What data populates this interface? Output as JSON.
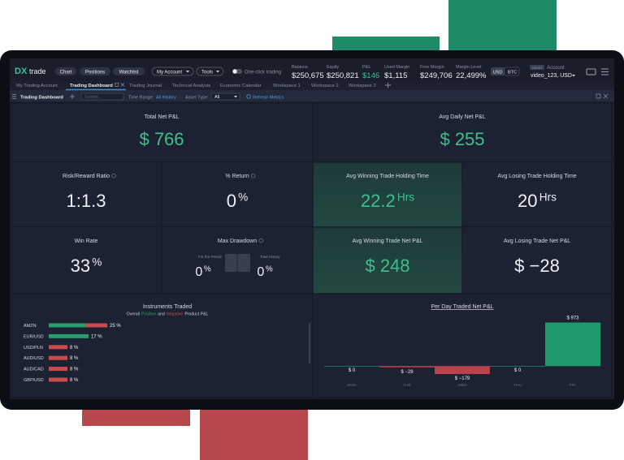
{
  "header": {
    "logo": {
      "mark": "DX",
      "text": "trade"
    },
    "buttons": [
      "Chart",
      "Positions",
      "Watchlist"
    ],
    "menus": [
      "My Account",
      "Tools"
    ],
    "toggle": "One-click trading",
    "metrics": [
      {
        "label": "Balance",
        "value": "$250,675"
      },
      {
        "label": "Equity",
        "value": "$250,821"
      },
      {
        "label": "P&L",
        "value": "$146",
        "positive": true
      },
      {
        "label": "Used Margin",
        "value": "$1,115"
      },
      {
        "label": "Free Margin",
        "value": "$249,706"
      },
      {
        "label": "Margin Level",
        "value": "22,499%"
      }
    ],
    "currencies": [
      "USD",
      "BTC"
    ],
    "account": {
      "badge": "DEMO",
      "label": "Account",
      "value": "video_123, USD"
    }
  },
  "tabs": {
    "items": [
      "My Trading Account",
      "Trading Dashboard",
      "Trading Journal",
      "Technical Analysis",
      "Economic Calendar",
      "Workspace 1",
      "Workspace 2",
      "Workspace 3"
    ],
    "active": 1
  },
  "toolbar": {
    "title": "Trading Dashboard",
    "symbol_placeholder": "Symbol...",
    "time_range_label": "Time Range:",
    "time_range": "All History",
    "asset_type_label": "Asset Type:",
    "asset_type": "All",
    "refresh": "Refresh Metrics"
  },
  "cards": [
    {
      "label": "Total Net P&L",
      "value": "$ 766",
      "positive": true
    },
    {
      "label": "Avg Daily Net P&L",
      "value": "$ 255",
      "positive": true
    },
    {
      "label": "Risk/Reward Ratio",
      "value": "1:1.3",
      "info": true
    },
    {
      "label": "% Return",
      "value": "0",
      "unit": "%",
      "info": true
    },
    {
      "label": "Avg Winning Trade Holding Time",
      "value": "22.2",
      "unit": "Hrs",
      "positive": true,
      "highlight": true
    },
    {
      "label": "Avg Losing Trade Holding Time",
      "value": "20",
      "unit": "Hrs"
    },
    {
      "label": "Win Rate",
      "value": "33",
      "unit": "%"
    },
    {
      "label": "Max Drawdown",
      "info": true,
      "sub": [
        {
          "label": "For the Period",
          "value": "0",
          "unit": "%"
        },
        {
          "label": "Total History",
          "value": "0",
          "unit": "%"
        }
      ]
    },
    {
      "label": "Avg Winning Trade Net P&L",
      "value": "$ 248",
      "positive": true,
      "highlight": true
    },
    {
      "label": "Avg Losing Trade Net P&L",
      "value": "$ −28"
    }
  ],
  "chart_data": [
    {
      "type": "hbar",
      "title": "Instruments Traded",
      "subtitle": {
        "before": "Overall",
        "between": "and",
        "after": "Product P&L"
      },
      "categories": [
        "AMZN",
        "EUR/USD",
        "USD/PLN",
        "AUD/USD",
        "AUD/CAD",
        "GBP/USD"
      ],
      "values": [
        25,
        17,
        8,
        8,
        8,
        8
      ],
      "value_labels": [
        "25 %",
        "17 %",
        "8 %",
        "8 %",
        "8 %",
        "8 %"
      ],
      "series": [
        {
          "name": "Positive",
          "color": "#2a9d6e",
          "values": [
            16,
            17,
            0,
            0,
            0,
            0
          ]
        },
        {
          "name": "Negative",
          "color": "#c94a4f",
          "values": [
            9,
            0,
            8,
            8,
            8,
            8
          ]
        }
      ],
      "xlim": [
        0,
        100
      ]
    },
    {
      "type": "bar",
      "title": "Per Day Traded Net P&L",
      "categories": [
        "MON",
        "TUE",
        "WED",
        "THU",
        "FRI"
      ],
      "values": [
        0,
        -28,
        -179,
        0,
        973
      ],
      "value_labels": [
        "$ 0",
        "$ −28",
        "$ −179",
        "$ 0",
        "$ 973"
      ],
      "ylim": [
        -250,
        1200
      ],
      "colors": {
        "positive": "#1f9a6c",
        "negative": "#b8424a"
      }
    }
  ]
}
